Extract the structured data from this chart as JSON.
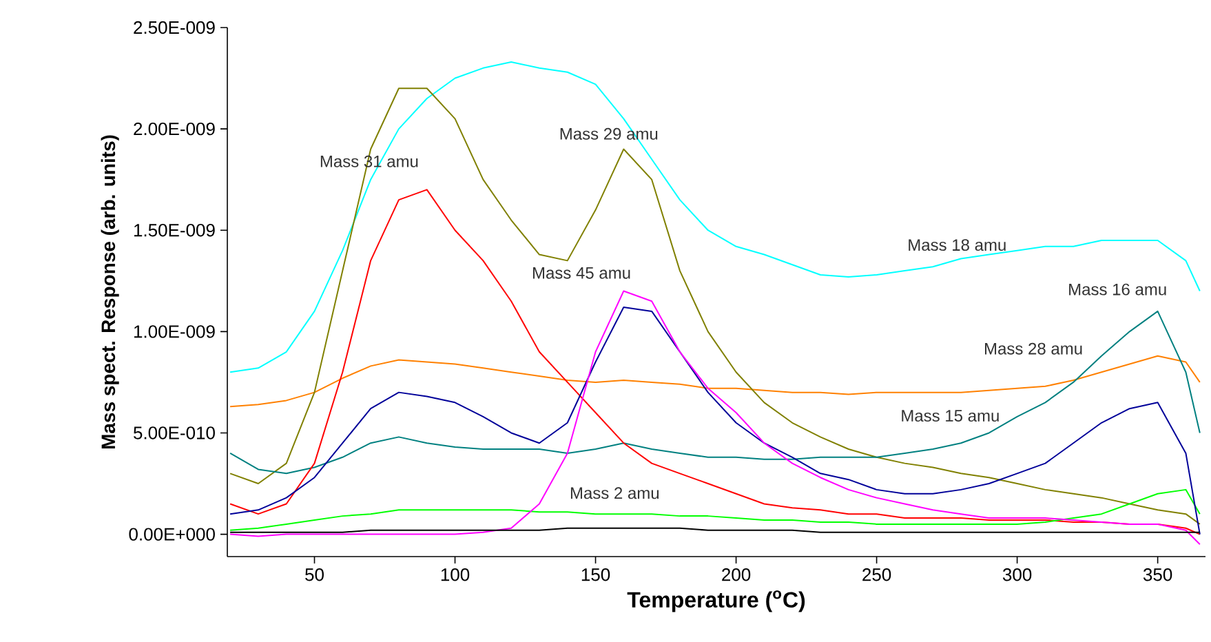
{
  "chart_data": {
    "type": "line",
    "xlabel": "Temperature ($^{o}$C)",
    "ylabel": "Mass spect. Response (arb. units)",
    "x": [
      20,
      30,
      40,
      50,
      60,
      70,
      80,
      90,
      100,
      110,
      120,
      130,
      140,
      150,
      160,
      170,
      180,
      190,
      200,
      210,
      220,
      230,
      240,
      250,
      260,
      270,
      280,
      290,
      300,
      310,
      320,
      330,
      340,
      350,
      360,
      365
    ],
    "series": [
      {
        "color": "#00ffff",
        "values": [
          8e-10,
          8.2e-10,
          9e-10,
          1.1e-09,
          1.4e-09,
          1.75e-09,
          2e-09,
          2.15e-09,
          2.25e-09,
          2.3e-09,
          2.33e-09,
          2.3e-09,
          2.28e-09,
          2.22e-09,
          2.05e-09,
          1.85e-09,
          1.65e-09,
          1.5e-09,
          1.42e-09,
          1.38e-09,
          1.33e-09,
          1.28e-09,
          1.27e-09,
          1.28e-09,
          1.3e-09,
          1.32e-09,
          1.36e-09,
          1.38e-09,
          1.4e-09,
          1.42e-09,
          1.42e-09,
          1.45e-09,
          1.45e-09,
          1.45e-09,
          1.35e-09,
          1.2e-09
        ]
      },
      {
        "color": "#ff8000",
        "values": [
          6.3e-10,
          6.4e-10,
          6.6e-10,
          7e-10,
          7.7e-10,
          8.3e-10,
          8.6e-10,
          8.5e-10,
          8.4e-10,
          8.2e-10,
          8e-10,
          7.8e-10,
          7.6e-10,
          7.5e-10,
          7.6e-10,
          7.5e-10,
          7.4e-10,
          7.2e-10,
          7.2e-10,
          7.1e-10,
          7e-10,
          7e-10,
          6.9e-10,
          7e-10,
          7e-10,
          7e-10,
          7e-10,
          7.1e-10,
          7.2e-10,
          7.3e-10,
          7.6e-10,
          8e-10,
          8.4e-10,
          8.8e-10,
          8.5e-10,
          7.5e-10
        ]
      },
      {
        "color": "#808000",
        "values": [
          3e-10,
          2.5e-10,
          3.5e-10,
          7e-10,
          1.3e-09,
          1.9e-09,
          2.2e-09,
          2.2e-09,
          2.05e-09,
          1.75e-09,
          1.55e-09,
          1.38e-09,
          1.35e-09,
          1.6e-09,
          1.9e-09,
          1.75e-09,
          1.3e-09,
          1e-09,
          8e-10,
          6.5e-10,
          5.5e-10,
          4.8e-10,
          4.2e-10,
          3.8e-10,
          3.5e-10,
          3.3e-10,
          3e-10,
          2.8e-10,
          2.5e-10,
          2.2e-10,
          2e-10,
          1.8e-10,
          1.5e-10,
          1.2e-10,
          1e-10,
          5e-11
        ]
      },
      {
        "color": "#008080",
        "values": [
          4e-10,
          3.2e-10,
          3e-10,
          3.3e-10,
          3.8e-10,
          4.5e-10,
          4.8e-10,
          4.5e-10,
          4.3e-10,
          4.2e-10,
          4.2e-10,
          4.2e-10,
          4e-10,
          4.2e-10,
          4.5e-10,
          4.2e-10,
          4e-10,
          3.8e-10,
          3.8e-10,
          3.7e-10,
          3.7e-10,
          3.8e-10,
          3.8e-10,
          3.8e-10,
          4e-10,
          4.2e-10,
          4.5e-10,
          5e-10,
          5.8e-10,
          6.5e-10,
          7.5e-10,
          8.8e-10,
          1e-09,
          1.1e-09,
          8e-10,
          5e-10
        ]
      },
      {
        "color": "#ff0000",
        "values": [
          1.5e-10,
          1e-10,
          1.5e-10,
          3.5e-10,
          8e-10,
          1.35e-09,
          1.65e-09,
          1.7e-09,
          1.5e-09,
          1.35e-09,
          1.15e-09,
          9e-10,
          7.5e-10,
          6e-10,
          4.5e-10,
          3.5e-10,
          3e-10,
          2.5e-10,
          2e-10,
          1.5e-10,
          1.3e-10,
          1.2e-10,
          1e-10,
          1e-10,
          8e-11,
          8e-11,
          8e-11,
          7e-11,
          7e-11,
          7e-11,
          6e-11,
          6e-11,
          5e-11,
          5e-11,
          3e-11,
          0.0
        ]
      },
      {
        "color": "#00ff00",
        "values": [
          2e-11,
          3e-11,
          5e-11,
          7e-11,
          9e-11,
          1e-10,
          1.2e-10,
          1.2e-10,
          1.2e-10,
          1.2e-10,
          1.2e-10,
          1.1e-10,
          1.1e-10,
          1e-10,
          1e-10,
          1e-10,
          9e-11,
          9e-11,
          8e-11,
          7e-11,
          7e-11,
          6e-11,
          6e-11,
          5e-11,
          5e-11,
          5e-11,
          5e-11,
          5e-11,
          5e-11,
          6e-11,
          8e-11,
          1e-10,
          1.5e-10,
          2e-10,
          2.2e-10,
          1e-10
        ]
      },
      {
        "color": "#000099",
        "values": [
          1e-10,
          1.2e-10,
          1.8e-10,
          2.8e-10,
          4.5e-10,
          6.2e-10,
          7e-10,
          6.8e-10,
          6.5e-10,
          5.8e-10,
          5e-10,
          4.5e-10,
          5.5e-10,
          8.5e-10,
          1.12e-09,
          1.1e-09,
          9e-10,
          7e-10,
          5.5e-10,
          4.5e-10,
          3.8e-10,
          3e-10,
          2.7e-10,
          2.2e-10,
          2e-10,
          2e-10,
          2.2e-10,
          2.5e-10,
          3e-10,
          3.5e-10,
          4.5e-10,
          5.5e-10,
          6.2e-10,
          6.5e-10,
          4e-10,
          0.0
        ]
      },
      {
        "color": "#ff00ff",
        "values": [
          0.0,
          -1e-11,
          0.0,
          0.0,
          0.0,
          0.0,
          0.0,
          0.0,
          0.0,
          1e-11,
          3e-11,
          1.5e-10,
          4e-10,
          9e-10,
          1.2e-09,
          1.15e-09,
          9e-10,
          7.2e-10,
          6e-10,
          4.5e-10,
          3.5e-10,
          2.8e-10,
          2.2e-10,
          1.8e-10,
          1.5e-10,
          1.2e-10,
          1e-10,
          8e-11,
          8e-11,
          8e-11,
          7e-11,
          6e-11,
          5e-11,
          5e-11,
          2e-11,
          -5e-11
        ]
      },
      {
        "color": "#000000",
        "values": [
          1e-11,
          1e-11,
          1e-11,
          1e-11,
          1e-11,
          2e-11,
          2e-11,
          2e-11,
          2e-11,
          2e-11,
          2e-11,
          2e-11,
          3e-11,
          3e-11,
          3e-11,
          3e-11,
          3e-11,
          2e-11,
          2e-11,
          2e-11,
          2e-11,
          1e-11,
          1e-11,
          1e-11,
          1e-11,
          1e-11,
          1e-11,
          1e-11,
          1e-11,
          1e-11,
          1e-11,
          1e-11,
          1e-11,
          1e-11,
          1e-11,
          1e-11
        ]
      }
    ],
    "annotations": [
      "Mass 31 amu",
      "Mass 29 amu",
      "Mass 45 amu",
      "Mass 18 amu",
      "Mass 16 amu",
      "Mass 28 amu",
      "Mass 15 amu",
      "Mass 2 amu"
    ],
    "xlim": [
      19,
      367
    ],
    "ylim": [
      -1.1e-10,
      2.5e-09
    ],
    "xticks": [
      50,
      100,
      150,
      200,
      250,
      300,
      350
    ],
    "yticks": [
      {
        "value": 0,
        "label": "0.00E+000"
      },
      {
        "value": 5e-10,
        "label": "5.00E-010"
      },
      {
        "value": 1e-09,
        "label": "1.00E-009"
      },
      {
        "value": 1.5e-09,
        "label": "1.50E-009"
      },
      {
        "value": 2e-09,
        "label": "2.00E-009"
      },
      {
        "value": 2.5e-09,
        "label": "2.50E-009"
      }
    ],
    "grid": false,
    "legend": false,
    "line_style": "solid"
  }
}
